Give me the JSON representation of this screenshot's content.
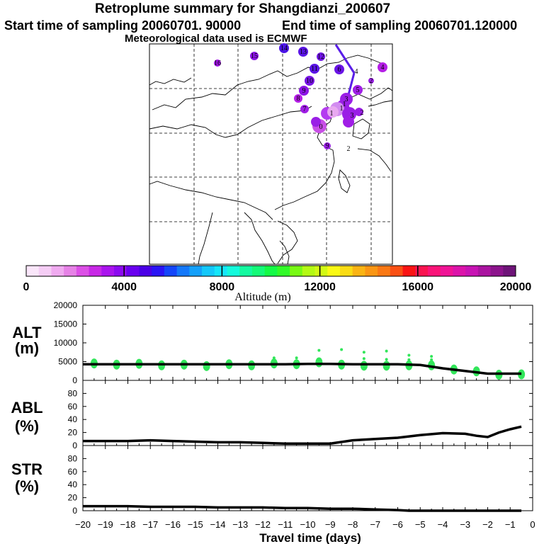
{
  "title": {
    "line1": "Retroplume summary for Shangdianzi_200607",
    "start_label": "Start time of sampling 20060701. 90000",
    "end_label": "End time of sampling 20060701.120000",
    "line3": "Meteorological data used is ECMWF"
  },
  "colors": {
    "plume_point": "#9a1fe6",
    "plume_light": "#e8a8f0",
    "path_line": "#5a1ee8",
    "alt_points": "#32e65a",
    "series_line": "#000000"
  },
  "map": {
    "gridlines": "dashed",
    "labels": [
      {
        "text": "16"
      },
      {
        "text": "15"
      },
      {
        "text": "14"
      },
      {
        "text": "13"
      },
      {
        "text": "12"
      },
      {
        "text": "11"
      },
      {
        "text": "10"
      },
      {
        "text": "9"
      },
      {
        "text": "8"
      },
      {
        "text": "7"
      },
      {
        "text": "6"
      },
      {
        "text": "5"
      },
      {
        "text": "4"
      },
      {
        "text": "4"
      },
      {
        "text": "3"
      },
      {
        "text": "3"
      },
      {
        "text": "2"
      },
      {
        "text": "2"
      },
      {
        "text": "1"
      },
      {
        "text": "1"
      },
      {
        "text": "1"
      },
      {
        "text": "0"
      },
      {
        "text": "9"
      },
      {
        "text": "2"
      }
    ]
  },
  "colorbar": {
    "xlabel": "Altitude (m)",
    "ticks": [
      "0",
      "4000",
      "8000",
      "12000",
      "16000",
      "20000"
    ],
    "colors": [
      "#fae6fa",
      "#f5cdf5",
      "#f0aaf0",
      "#e682e6",
      "#dc50e6",
      "#c828e6",
      "#aa14ee",
      "#8c0af0",
      "#6a00f0",
      "#4b00e6",
      "#2a14f5",
      "#1446fa",
      "#1478fa",
      "#14a0fa",
      "#14c8fa",
      "#14e6fa",
      "#14fadc",
      "#14faa0",
      "#14fa78",
      "#14fa46",
      "#32fa28",
      "#78fa14",
      "#b4fa14",
      "#d2fa14",
      "#fafa14",
      "#fadc14",
      "#fab414",
      "#fa9614",
      "#fa7814",
      "#fa5014",
      "#fa1414",
      "#fa1450",
      "#fa1478",
      "#f01496",
      "#dc14aa",
      "#c814b4",
      "#aa14a0",
      "#8c148c",
      "#6e1478"
    ]
  },
  "chart_data": [
    {
      "type": "line",
      "name": "ALT",
      "ylabel_main": "ALT",
      "ylabel_unit": "(m)",
      "ylim": [
        0,
        20000
      ],
      "yticks": [
        0,
        5000,
        10000,
        15000,
        20000
      ],
      "x": [
        -20,
        -19,
        -18,
        -17,
        -16,
        -15,
        -14,
        -13,
        -12,
        -11,
        -10,
        -9,
        -8,
        -7,
        -6,
        -5,
        -4,
        -3,
        -2,
        -1,
        -0.5
      ],
      "values": [
        4300,
        4300,
        4300,
        4300,
        4300,
        4300,
        4300,
        4300,
        4300,
        4300,
        4400,
        4400,
        4300,
        4300,
        4300,
        4100,
        3200,
        2500,
        1800,
        1800,
        1800
      ],
      "points": [
        {
          "x": -19.5,
          "y": 4500
        },
        {
          "x": -18.5,
          "y": 4200
        },
        {
          "x": -17.5,
          "y": 4400
        },
        {
          "x": -16.5,
          "y": 4000
        },
        {
          "x": -15.5,
          "y": 4200
        },
        {
          "x": -14.5,
          "y": 3800
        },
        {
          "x": -13.5,
          "y": 4300
        },
        {
          "x": -12.5,
          "y": 4000
        },
        {
          "x": -11.5,
          "y": 4500
        },
        {
          "x": -10.5,
          "y": 4300
        },
        {
          "x": -9.5,
          "y": 4800
        },
        {
          "x": -8.5,
          "y": 4200
        },
        {
          "x": -7.5,
          "y": 3900
        },
        {
          "x": -6.5,
          "y": 3900
        },
        {
          "x": -5.5,
          "y": 4000
        },
        {
          "x": -4.5,
          "y": 4000
        },
        {
          "x": -3.5,
          "y": 2900
        },
        {
          "x": -2.5,
          "y": 2400
        },
        {
          "x": -1.5,
          "y": 1500
        },
        {
          "x": -0.5,
          "y": 1600
        },
        {
          "x": -11.5,
          "y": 6000
        },
        {
          "x": -10.5,
          "y": 6000
        },
        {
          "x": -9.5,
          "y": 8000
        },
        {
          "x": -8.5,
          "y": 8200
        },
        {
          "x": -7.5,
          "y": 7500
        },
        {
          "x": -6.5,
          "y": 7800
        },
        {
          "x": -5.5,
          "y": 5500
        },
        {
          "x": -4.5,
          "y": 5500
        },
        {
          "x": -4.5,
          "y": 6400
        },
        {
          "x": -5.5,
          "y": 6700
        },
        {
          "x": -6.5,
          "y": 5600
        },
        {
          "x": -7.5,
          "y": 5800
        }
      ]
    },
    {
      "type": "line",
      "name": "ABL",
      "ylabel_main": "ABL",
      "ylabel_unit": "(%)",
      "ylim": [
        0,
        100
      ],
      "yticks": [
        0,
        20,
        40,
        60,
        80
      ],
      "x": [
        -20,
        -19,
        -18,
        -17,
        -16,
        -15,
        -14,
        -13,
        -12,
        -11,
        -10,
        -9,
        -8,
        -7,
        -6,
        -5,
        -4,
        -3,
        -2.5,
        -2,
        -1.5,
        -1,
        -0.5
      ],
      "values": [
        7,
        7,
        7,
        8,
        7,
        6,
        5,
        5,
        4,
        3,
        3,
        3,
        8,
        10,
        12,
        16,
        19,
        18,
        15,
        13,
        20,
        25,
        29
      ]
    },
    {
      "type": "line",
      "name": "STR",
      "ylabel_main": "STR",
      "ylabel_unit": "(%)",
      "ylim": [
        0,
        100
      ],
      "yticks": [
        0,
        20,
        40,
        60,
        80
      ],
      "x": [
        -20,
        -19,
        -18,
        -17,
        -16,
        -15,
        -14,
        -13,
        -12,
        -11,
        -10,
        -9,
        -8,
        -7,
        -6,
        -5.5,
        -5,
        -4,
        -3,
        -2,
        -1,
        -0.5
      ],
      "values": [
        7,
        7,
        7,
        6,
        6,
        6,
        5,
        5,
        5,
        4,
        4,
        3,
        3,
        2,
        1,
        0,
        0,
        0,
        0,
        0,
        0,
        0
      ],
      "xlabel": "Travel time (days)",
      "xticks": [
        -20,
        -19,
        -18,
        -17,
        -16,
        -15,
        -14,
        -13,
        -12,
        -11,
        -10,
        -9,
        -8,
        -7,
        -6,
        -5,
        -4,
        -3,
        -2,
        -1,
        0
      ]
    }
  ]
}
